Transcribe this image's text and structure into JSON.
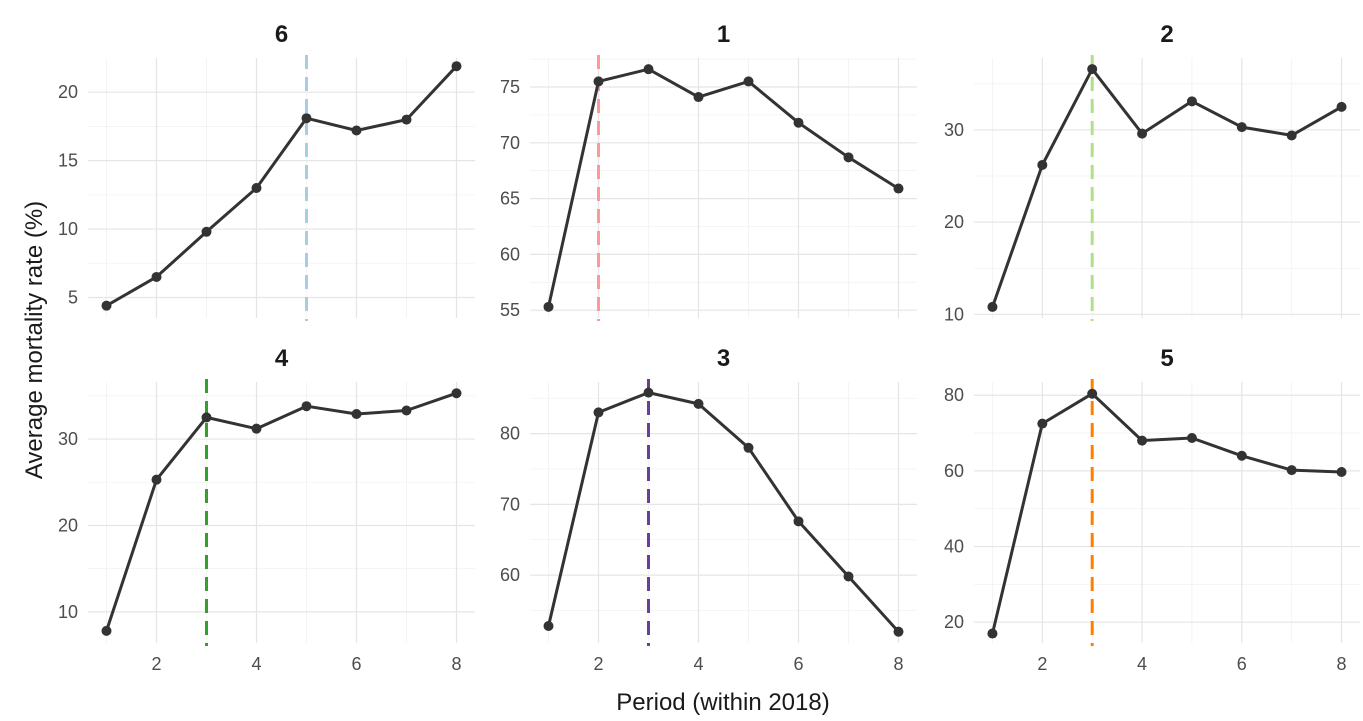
{
  "chart_data": {
    "type": "line",
    "xlabel": "Period (within 2018)",
    "ylabel": "Average mortality rate (%)",
    "x": [
      1,
      2,
      3,
      4,
      5,
      6,
      7,
      8
    ],
    "x_ticks": [
      2,
      4,
      6,
      8
    ],
    "grid": true,
    "facets": [
      {
        "title": "6",
        "values": [
          4.4,
          6.5,
          9.8,
          13.0,
          18.1,
          17.2,
          18.0,
          21.9
        ],
        "vline_x": 5,
        "vline_color": "#a6cee3",
        "ylim": [
          3.5,
          22.5
        ],
        "y_ticks": [
          5,
          10,
          15,
          20
        ]
      },
      {
        "title": "1",
        "values": [
          55.3,
          75.5,
          76.6,
          74.1,
          75.5,
          71.8,
          68.7,
          65.9
        ],
        "vline_x": 2,
        "vline_color": "#fb9a99",
        "ylim": [
          54.3,
          77.6
        ],
        "y_ticks": [
          55,
          60,
          65,
          70,
          75
        ]
      },
      {
        "title": "2",
        "values": [
          10.8,
          26.2,
          36.6,
          29.6,
          33.1,
          30.3,
          29.4,
          32.5
        ],
        "vline_x": 3,
        "vline_color": "#b2df8a",
        "ylim": [
          9.6,
          37.8
        ],
        "y_ticks": [
          10,
          20,
          30
        ]
      },
      {
        "title": "4",
        "values": [
          7.8,
          25.3,
          32.5,
          31.2,
          33.8,
          32.9,
          33.3,
          35.3
        ],
        "vline_x": 3,
        "vline_color": "#33a02c",
        "ylim": [
          6.4,
          36.6
        ],
        "y_ticks": [
          10,
          20,
          30
        ]
      },
      {
        "title": "3",
        "values": [
          52.8,
          83.0,
          85.8,
          84.2,
          78.0,
          67.6,
          59.8,
          52.0
        ],
        "vline_x": 3,
        "vline_color": "#6a3d9a",
        "ylim": [
          50.4,
          87.3
        ],
        "y_ticks": [
          60,
          70,
          80
        ]
      },
      {
        "title": "5",
        "values": [
          17.0,
          72.5,
          80.4,
          68.0,
          68.7,
          64.0,
          60.2,
          59.7
        ],
        "vline_x": 3,
        "vline_color": "#ff7f00",
        "ylim": [
          14.5,
          83.5
        ],
        "y_ticks": [
          20,
          40,
          60,
          80
        ]
      }
    ]
  }
}
